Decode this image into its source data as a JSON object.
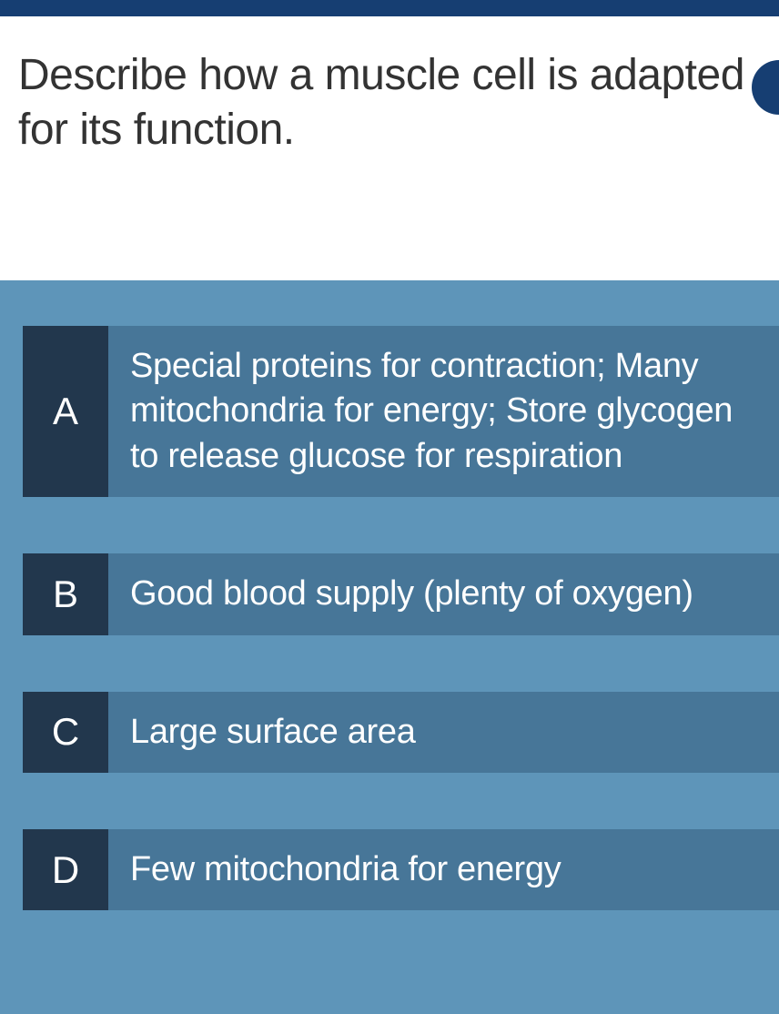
{
  "colors": {
    "header_bg": "#163e72",
    "question_bg": "#ffffff",
    "question_text": "#333333",
    "answers_bg": "#5e95b9",
    "letter_bg": "#22374d",
    "answer_bg": "#477698",
    "answer_text": "#ffffff"
  },
  "question": {
    "text": "Describe how a muscle cell is adapted for its function."
  },
  "answers": [
    {
      "letter": "A",
      "text": "Special proteins for contraction; Many mitochondria for energy; Store glycogen to release glucose for respiration"
    },
    {
      "letter": "B",
      "text": "Good blood supply (plenty of oxygen)"
    },
    {
      "letter": "C",
      "text": "Large surface area"
    },
    {
      "letter": "D",
      "text": "Few mitochondria for energy"
    }
  ]
}
